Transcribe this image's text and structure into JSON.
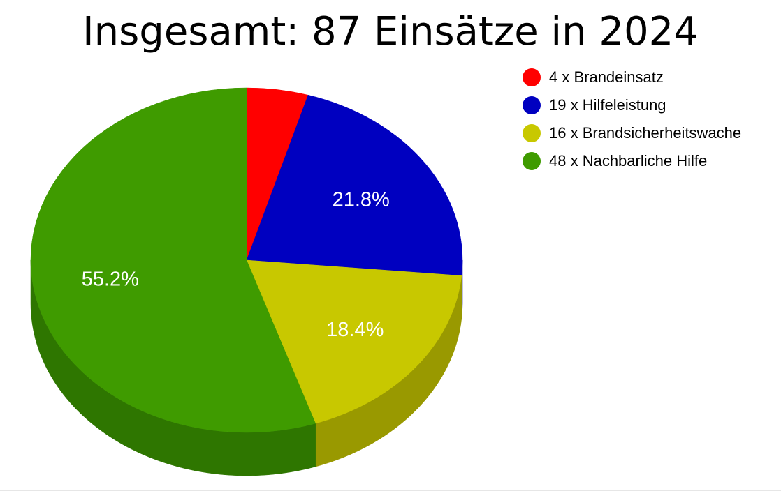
{
  "chart_data": {
    "type": "pie",
    "title": "Insgesamt: 87 Einsätze in 2024",
    "total": 87,
    "slices": [
      {
        "label": "4 x Brandeinsatz",
        "value": 4,
        "color": "#ff0000",
        "side_color": "#c80000",
        "percent_label": ""
      },
      {
        "label": "19 x Hilfeleistung",
        "value": 19,
        "color": "#0000c0",
        "side_color": "#000090",
        "percent_label": "21.8%"
      },
      {
        "label": "16 x Brandsicherheitswache",
        "value": 16,
        "color": "#c8c800",
        "side_color": "#999900",
        "percent_label": "18.4%"
      },
      {
        "label": "48 x Nachbarliche Hilfe",
        "value": 48,
        "color": "#3f9b00",
        "side_color": "#2e7600",
        "percent_label": "55.2%"
      }
    ],
    "style": "3d",
    "legend_position": "top-right",
    "label_color": "#ffffff"
  }
}
